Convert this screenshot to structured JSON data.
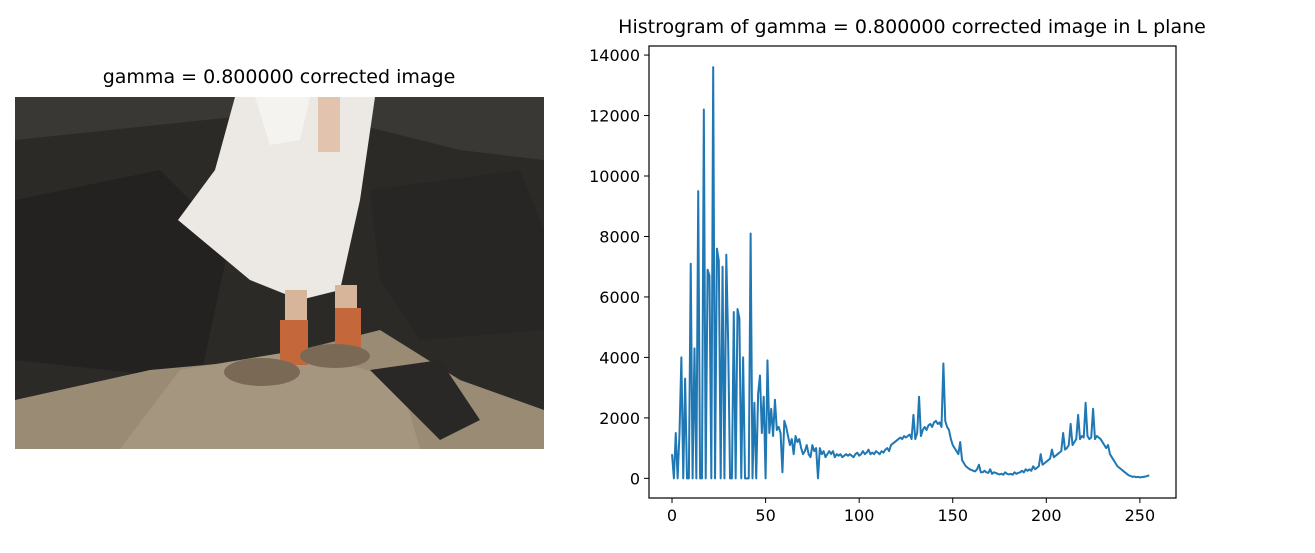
{
  "chart_data": [
    {
      "type": "image",
      "title": "gamma = 0.800000 corrected image"
    },
    {
      "type": "line",
      "title": "Histrogram of gamma = 0.800000 corrected image in L plane",
      "x": [
        0,
        1,
        2,
        3,
        4,
        5,
        6,
        7,
        8,
        9,
        10,
        11,
        12,
        13,
        14,
        15,
        16,
        17,
        18,
        19,
        20,
        21,
        22,
        23,
        24,
        25,
        26,
        27,
        28,
        29,
        30,
        31,
        32,
        33,
        34,
        35,
        36,
        37,
        38,
        39,
        40,
        41,
        42,
        43,
        44,
        45,
        46,
        47,
        48,
        49,
        50,
        51,
        52,
        53,
        54,
        55,
        56,
        57,
        58,
        59,
        60,
        61,
        62,
        63,
        64,
        65,
        66,
        67,
        68,
        69,
        70,
        71,
        72,
        73,
        74,
        75,
        76,
        77,
        78,
        79,
        80,
        81,
        82,
        83,
        84,
        85,
        86,
        87,
        88,
        89,
        90,
        91,
        92,
        93,
        94,
        95,
        96,
        97,
        98,
        99,
        100,
        101,
        102,
        103,
        104,
        105,
        106,
        107,
        108,
        109,
        110,
        111,
        112,
        113,
        114,
        115,
        116,
        117,
        118,
        119,
        120,
        121,
        122,
        123,
        124,
        125,
        126,
        127,
        128,
        129,
        130,
        131,
        132,
        133,
        134,
        135,
        136,
        137,
        138,
        139,
        140,
        141,
        142,
        143,
        144,
        145,
        146,
        147,
        148,
        149,
        150,
        151,
        152,
        153,
        154,
        155,
        156,
        157,
        158,
        159,
        160,
        161,
        162,
        163,
        164,
        165,
        166,
        167,
        168,
        169,
        170,
        171,
        172,
        173,
        174,
        175,
        176,
        177,
        178,
        179,
        180,
        181,
        182,
        183,
        184,
        185,
        186,
        187,
        188,
        189,
        190,
        191,
        192,
        193,
        194,
        195,
        196,
        197,
        198,
        199,
        200,
        201,
        202,
        203,
        204,
        205,
        206,
        207,
        208,
        209,
        210,
        211,
        212,
        213,
        214,
        215,
        216,
        217,
        218,
        219,
        220,
        221,
        222,
        223,
        224,
        225,
        226,
        227,
        228,
        229,
        230,
        231,
        232,
        233,
        234,
        235,
        236,
        237,
        238,
        239,
        240,
        241,
        242,
        243,
        244,
        245,
        246,
        247,
        248,
        249,
        250,
        251,
        252,
        253,
        254,
        255
      ],
      "series": [
        {
          "color": "#1f77b4",
          "values": [
            800,
            0,
            1500,
            0,
            1500,
            4000,
            0,
            3300,
            0,
            0,
            7100,
            0,
            4300,
            0,
            9500,
            0,
            0,
            12200,
            0,
            6900,
            6700,
            0,
            13600,
            0,
            7600,
            7200,
            0,
            7000,
            0,
            7400,
            4500,
            0,
            0,
            5500,
            0,
            5600,
            5300,
            0,
            4000,
            0,
            0,
            0,
            8100,
            0,
            2500,
            0,
            2800,
            3400,
            1500,
            2700,
            0,
            3900,
            1500,
            2300,
            1400,
            2600,
            1600,
            1700,
            1500,
            200,
            1900,
            1700,
            1400,
            1100,
            1300,
            800,
            1400,
            1200,
            1300,
            1000,
            800,
            900,
            1100,
            800,
            700,
            1100,
            900,
            1000,
            0,
            1000,
            800,
            900,
            700,
            800,
            900,
            800,
            900,
            700,
            800,
            750,
            800,
            700,
            750,
            800,
            750,
            800,
            750,
            700,
            800,
            850,
            750,
            800,
            900,
            800,
            850,
            950,
            800,
            850,
            800,
            900,
            850,
            800,
            900,
            850,
            950,
            1000,
            900,
            1100,
            1150,
            1200,
            1250,
            1300,
            1350,
            1300,
            1400,
            1350,
            1400,
            1450,
            1300,
            2100,
            1300,
            1500,
            2700,
            1400,
            1600,
            1700,
            1600,
            1750,
            1800,
            1700,
            1850,
            1900,
            1800,
            1850,
            1700,
            3800,
            1900,
            1700,
            1600,
            1300,
            1100,
            1000,
            900,
            800,
            1200,
            600,
            500,
            400,
            350,
            300,
            280,
            250,
            230,
            300,
            450,
            200,
            200,
            250,
            200,
            180,
            300,
            150,
            200,
            180,
            150,
            130,
            150,
            120,
            200,
            150,
            130,
            150,
            120,
            200,
            150,
            180,
            200,
            250,
            200,
            300,
            250,
            300,
            250,
            400,
            300,
            350,
            400,
            800,
            450,
            500,
            550,
            600,
            650,
            950,
            700,
            750,
            800,
            850,
            900,
            1500,
            950,
            1000,
            1100,
            1800,
            1100,
            1200,
            1300,
            2100,
            1300,
            1400,
            1350,
            2500,
            1400,
            1300,
            1350,
            2300,
            1300,
            1400,
            1350,
            1300,
            1200,
            1100,
            1000,
            1100,
            800,
            700,
            600,
            500,
            400,
            350,
            300,
            250,
            200,
            150,
            100,
            80,
            50,
            60,
            40,
            50,
            30,
            40,
            50,
            60,
            80,
            100
          ]
        }
      ],
      "xlim": [
        -12.3,
        269.3
      ],
      "ylim": [
        -650,
        14300
      ],
      "xticks": [
        0,
        50,
        100,
        150,
        200,
        250
      ],
      "yticks": [
        0,
        2000,
        4000,
        6000,
        8000,
        10000,
        12000,
        14000
      ]
    }
  ]
}
